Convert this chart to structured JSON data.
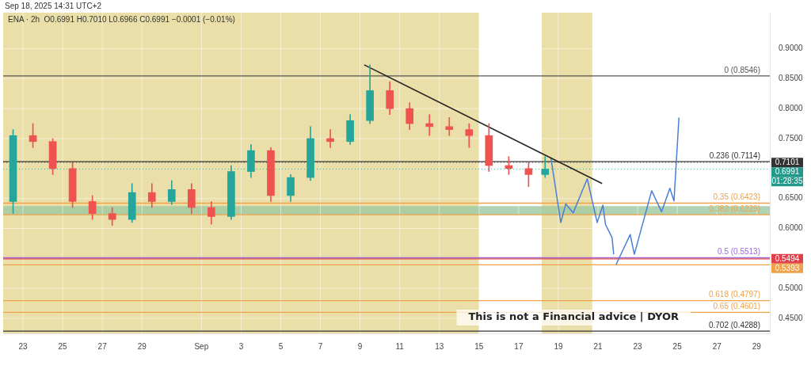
{
  "chart_data": {
    "type": "candlestick",
    "x": [
      "2025-08-22T12:00",
      "2025-08-23T12:00",
      "2025-08-24T12:00",
      "2025-08-25T12:00",
      "2025-08-26T12:00",
      "2025-08-27T12:00",
      "2025-08-28T12:00",
      "2025-08-29T12:00",
      "2025-08-30T12:00",
      "2025-08-31T12:00",
      "2025-09-01T12:00",
      "2025-09-02T12:00",
      "2025-09-03T12:00",
      "2025-09-04T12:00",
      "2025-09-05T12:00",
      "2025-09-06T12:00",
      "2025-09-07T12:00",
      "2025-09-08T12:00",
      "2025-09-09T12:00",
      "2025-09-10T12:00",
      "2025-09-11T12:00",
      "2025-09-12T12:00",
      "2025-09-13T12:00",
      "2025-09-14T12:00",
      "2025-09-15T12:00",
      "2025-09-16T12:00",
      "2025-09-17T12:00",
      "2025-09-18T08:00"
    ],
    "ohlc": [
      [
        0.645,
        0.765,
        0.625,
        0.755
      ],
      [
        0.755,
        0.775,
        0.735,
        0.745
      ],
      [
        0.745,
        0.75,
        0.69,
        0.7
      ],
      [
        0.7,
        0.71,
        0.635,
        0.645
      ],
      [
        0.645,
        0.655,
        0.615,
        0.625
      ],
      [
        0.625,
        0.635,
        0.605,
        0.615
      ],
      [
        0.615,
        0.675,
        0.61,
        0.66
      ],
      [
        0.66,
        0.675,
        0.635,
        0.645
      ],
      [
        0.645,
        0.68,
        0.64,
        0.665
      ],
      [
        0.665,
        0.675,
        0.625,
        0.635
      ],
      [
        0.635,
        0.645,
        0.607,
        0.62
      ],
      [
        0.62,
        0.705,
        0.615,
        0.695
      ],
      [
        0.695,
        0.74,
        0.685,
        0.73
      ],
      [
        0.73,
        0.735,
        0.645,
        0.655
      ],
      [
        0.655,
        0.69,
        0.645,
        0.685
      ],
      [
        0.685,
        0.77,
        0.68,
        0.75
      ],
      [
        0.75,
        0.765,
        0.735,
        0.745
      ],
      [
        0.745,
        0.79,
        0.74,
        0.78
      ],
      [
        0.78,
        0.873,
        0.775,
        0.83
      ],
      [
        0.83,
        0.845,
        0.79,
        0.8
      ],
      [
        0.8,
        0.81,
        0.765,
        0.775
      ],
      [
        0.775,
        0.79,
        0.755,
        0.77
      ],
      [
        0.77,
        0.785,
        0.755,
        0.765
      ],
      [
        0.765,
        0.775,
        0.735,
        0.755
      ],
      [
        0.755,
        0.775,
        0.695,
        0.705
      ],
      [
        0.705,
        0.72,
        0.69,
        0.7
      ],
      [
        0.7,
        0.71,
        0.67,
        0.69
      ],
      [
        0.69,
        0.72,
        0.685,
        0.6991
      ]
    ],
    "series": [
      {
        "type": "line",
        "color": "#222222",
        "x": [
          "2025-09-09T05:00",
          "2025-09-21T05:00"
        ],
        "values": [
          0.873,
          0.675
        ]
      },
      {
        "type": "line",
        "color": "#4a7fd6",
        "x": [
          "2025-09-18T15:00",
          "2025-09-19T03:00",
          "2025-09-19T09:00",
          "2025-09-19T18:00",
          "2025-09-20T11:00",
          "2025-09-20T23:00",
          "2025-09-21T06:00",
          "2025-09-21T09:00",
          "2025-09-21T17:00",
          "2025-09-21T19:00"
        ],
        "values": [
          0.718,
          0.61,
          0.641,
          0.626,
          0.683,
          0.61,
          0.639,
          0.607,
          0.585,
          0.557
        ]
      },
      {
        "type": "line",
        "color": "#4a7fd6",
        "x": [
          "2025-09-21T22:00",
          "2025-09-22T15:00",
          "2025-09-22T20:00",
          "2025-09-23T17:00",
          "2025-09-24T05:00",
          "2025-09-24T15:00",
          "2025-09-24T20:00",
          "2025-09-25T02:00"
        ],
        "values": [
          0.54,
          0.59,
          0.557,
          0.663,
          0.628,
          0.667,
          0.646,
          0.785
        ]
      }
    ],
    "xlim": [
      "2025-08-22",
      "2025-09-29T16:00"
    ],
    "xticks": [
      {
        "value": "2025-08-23",
        "label": "23"
      },
      {
        "value": "2025-08-25",
        "label": "25"
      },
      {
        "value": "2025-08-27",
        "label": "27"
      },
      {
        "value": "2025-08-29",
        "label": "29"
      },
      {
        "value": "2025-09-01",
        "label": "Sep"
      },
      {
        "value": "2025-09-03",
        "label": "3"
      },
      {
        "value": "2025-09-05",
        "label": "5"
      },
      {
        "value": "2025-09-07",
        "label": "7"
      },
      {
        "value": "2025-09-09",
        "label": "9"
      },
      {
        "value": "2025-09-11",
        "label": "11"
      },
      {
        "value": "2025-09-13",
        "label": "13"
      },
      {
        "value": "2025-09-15",
        "label": "15"
      },
      {
        "value": "2025-09-17",
        "label": "17"
      },
      {
        "value": "2025-09-19",
        "label": "19"
      },
      {
        "value": "2025-09-21",
        "label": "21"
      },
      {
        "value": "2025-09-23",
        "label": "23"
      },
      {
        "value": "2025-09-25",
        "label": "25"
      },
      {
        "value": "2025-09-27",
        "label": "27"
      },
      {
        "value": "2025-09-29",
        "label": "29"
      }
    ],
    "ylim": [
      0.425,
      0.96
    ],
    "yticks": [
      {
        "value": 0.45,
        "label": "0.4500"
      },
      {
        "value": 0.5,
        "label": "0.5000"
      },
      {
        "value": 0.6,
        "label": "0.6000"
      },
      {
        "value": 0.65,
        "label": "0.6500"
      },
      {
        "value": 0.75,
        "label": "0.7500"
      },
      {
        "value": 0.8,
        "label": "0.8000"
      },
      {
        "value": 0.85,
        "label": "0.8500"
      },
      {
        "value": 0.9,
        "label": "0.9000"
      }
    ],
    "grid": true,
    "legend": false,
    "ref_lines": [
      {
        "axis": "y",
        "value": 0.8546,
        "label": "0 (0.8546)",
        "color": "#555555"
      },
      {
        "axis": "y",
        "value": 0.7114,
        "label": "0.236 (0.7114)",
        "color": "#333333"
      },
      {
        "axis": "y",
        "value": 0.6423,
        "label": "0.35 (0.6423)",
        "color": "#f0a24a"
      },
      {
        "axis": "y",
        "value": 0.6229,
        "label": "0.382 (0.6229)",
        "color": "#f0a24a"
      },
      {
        "axis": "y",
        "value": 0.5513,
        "label": "0.5 (0.5513)",
        "color": "#9c6ad8"
      },
      {
        "axis": "y",
        "value": 0.7101,
        "label": "0.7101",
        "color": "#333333",
        "line_style": "dotted"
      },
      {
        "axis": "y",
        "value": 0.6991,
        "label": "0.6991",
        "color": "#22998a",
        "line_style": "dotted"
      },
      {
        "axis": "y",
        "value": 0.5494,
        "label": "0.5494",
        "color": "#e0404a",
        "line_style": "solid"
      },
      {
        "axis": "y",
        "value": 0.5393,
        "label": "0.5393",
        "color": "#f0a24a",
        "line_style": "solid"
      },
      {
        "axis": "y",
        "value": 0.4797,
        "label": "0.618 (0.4797)",
        "color": "#f0a24a"
      },
      {
        "axis": "y",
        "value": 0.4601,
        "label": "0.65 (0.4601)",
        "color": "#f0a24a"
      },
      {
        "axis": "y",
        "value": 0.4288,
        "label": "0.702 (0.4288)",
        "color": "#333333"
      }
    ],
    "bands": [
      {
        "axis": "x",
        "from": "2025-08-22",
        "to": "2025-09-15",
        "color": "#eadfa8"
      },
      {
        "axis": "x",
        "from": "2025-09-18T04:00",
        "to": "2025-09-20T17:00",
        "color": "#eadfa8"
      },
      {
        "axis": "y",
        "from": 0.6229,
        "to": 0.6375,
        "color": "#9cc9a0"
      }
    ],
    "annotations": [
      "Sep 18, 2025 14:31 UTC+2",
      "ENA · 2h  O0.6991 H0.7010 L0.6966 C0.6991 −0.0001 (−0.01%)",
      "This is not a Financial advice | DYOR",
      "01:28:35"
    ]
  }
}
